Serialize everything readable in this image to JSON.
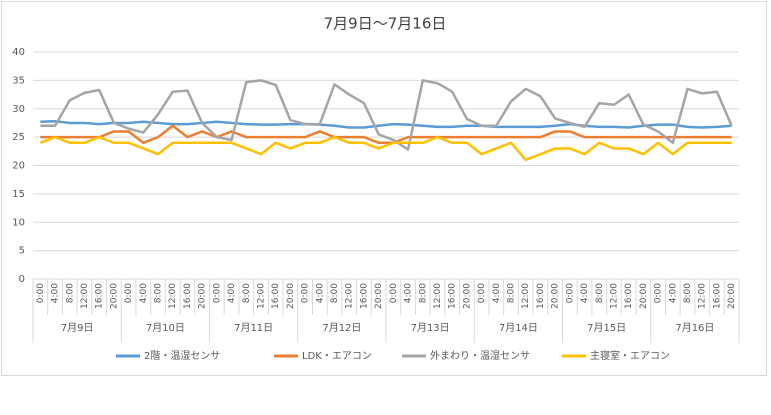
{
  "chart_data": {
    "type": "line",
    "title": "7月9日～7月16日",
    "categories": [
      "0:00",
      "4:00",
      "8:00",
      "12:00",
      "16:00",
      "20:00",
      "0:00",
      "4:00",
      "8:00",
      "12:00",
      "16:00",
      "20:00",
      "0:00",
      "4:00",
      "8:00",
      "12:00",
      "16:00",
      "20:00",
      "0:00",
      "4:00",
      "8:00",
      "12:00",
      "16:00",
      "20:00",
      "0:00",
      "4:00",
      "8:00",
      "12:00",
      "16:00",
      "20:00",
      "0:00",
      "4:00",
      "8:00",
      "12:00",
      "16:00",
      "20:00",
      "0:00",
      "4:00",
      "8:00",
      "12:00",
      "16:00",
      "20:00",
      "0:00",
      "4:00",
      "8:00",
      "12:00",
      "16:00",
      "20:00"
    ],
    "groups": [
      "7月9日",
      "7月10日",
      "7月11日",
      "7月12日",
      "7月13日",
      "7月14日",
      "7月15日",
      "7月16日"
    ],
    "series": [
      {
        "name": "2階・温湿センサ",
        "color": "#5b9bd5",
        "values": [
          27.7,
          27.8,
          27.5,
          27.5,
          27.3,
          27.5,
          27.5,
          27.7,
          27.5,
          27.3,
          27.3,
          27.5,
          27.7,
          27.5,
          27.3,
          27.2,
          27.2,
          27.3,
          27.3,
          27.2,
          27.0,
          26.7,
          26.7,
          27.0,
          27.3,
          27.2,
          27.0,
          26.8,
          26.8,
          27.0,
          27.0,
          26.8,
          26.8,
          26.8,
          26.8,
          27.0,
          27.3,
          27.0,
          26.8,
          26.8,
          26.7,
          27.0,
          27.2,
          27.2,
          26.8,
          26.7,
          26.8,
          27.0
        ]
      },
      {
        "name": "LDK・エアコン",
        "color": "#ed7d31",
        "values": [
          25,
          25,
          25,
          25,
          25,
          26,
          26,
          24,
          25,
          27,
          25,
          26,
          25,
          26,
          25,
          25,
          25,
          25,
          25,
          26,
          25,
          25,
          25,
          24,
          24,
          25,
          25,
          25,
          25,
          25,
          25,
          25,
          25,
          25,
          25,
          26,
          26,
          25,
          25,
          25,
          25,
          25,
          25,
          25,
          25,
          25,
          25,
          25
        ]
      },
      {
        "name": "外まわり・温湿センサ",
        "color": "#a5a5a5",
        "values": [
          27,
          27,
          31.5,
          32.8,
          33.3,
          27.5,
          26.5,
          25.8,
          29,
          33,
          33.2,
          27.5,
          25,
          24.5,
          34.7,
          35,
          34.2,
          28,
          27.3,
          27.3,
          34.3,
          32.5,
          31,
          25.5,
          24.5,
          22.8,
          35,
          34.5,
          33,
          28.2,
          27,
          27,
          31.3,
          33.5,
          32.2,
          28.3,
          27.5,
          26.8,
          31,
          30.7,
          32.5,
          27.2,
          26,
          24,
          33.5,
          32.7,
          33,
          27
        ]
      },
      {
        "name": "主寝室・エアコン",
        "color": "#ffc000",
        "values": [
          24,
          25,
          24,
          24,
          25,
          24,
          24,
          23,
          22,
          24,
          24,
          24,
          24,
          24,
          23,
          22,
          24,
          23,
          24,
          24,
          25,
          24,
          24,
          23,
          24,
          24,
          24,
          25,
          24,
          24,
          22,
          23,
          24,
          21,
          22,
          23,
          23,
          22,
          24,
          23,
          23,
          22,
          24,
          22,
          24,
          24,
          24,
          24
        ]
      }
    ],
    "ylim": [
      0,
      40
    ],
    "yticks": [
      0,
      5,
      10,
      15,
      20,
      25,
      30,
      35,
      40
    ],
    "grid": true
  }
}
